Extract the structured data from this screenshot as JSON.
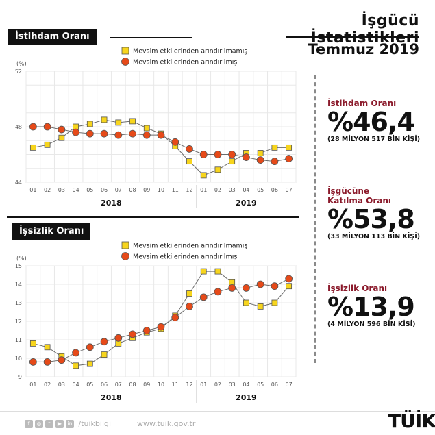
{
  "header": {
    "title": "İşgücü İstatistikleri",
    "period": "Temmuz 2019"
  },
  "sections": {
    "employment_tag": "İstihdam Oranı",
    "unemployment_tag": "İşsizlik Oranı"
  },
  "stats": [
    {
      "label_lines": [
        "İstihdam Oranı"
      ],
      "value": "%46,4",
      "sub": "(28 MİLYON 517 BİN KİŞİ)"
    },
    {
      "label_lines": [
        "İşgücüne",
        "Katılma Oranı"
      ],
      "value": "%53,8",
      "sub": "(33 MİLYON 113 BİN KİŞİ)"
    },
    {
      "label_lines": [
        "İşsizlik Oranı"
      ],
      "value": "%13,9",
      "sub": "(4 MİLYON 596 BİN KİŞİ)"
    }
  ],
  "footer": {
    "handle": "/tuikbilgi",
    "site": "www.tuik.gov.tr",
    "logo": "TÜİK"
  },
  "colors": {
    "raw": "#f7d51d",
    "adjusted": "#e64a19",
    "accent": "#8b1a2b"
  },
  "chart_data": [
    {
      "type": "line",
      "ylabel": "(%)",
      "ylim": [
        44,
        52
      ],
      "yticks": [
        44,
        48,
        52
      ],
      "categories": [
        "01",
        "02",
        "03",
        "04",
        "05",
        "06",
        "07",
        "08",
        "09",
        "10",
        "11",
        "12",
        "01",
        "02",
        "03",
        "04",
        "05",
        "06",
        "07"
      ],
      "year_labels": [
        "2018",
        "2019"
      ],
      "grid": true,
      "legend_position": "top",
      "series": [
        {
          "name": "Mevsim etkilerinden arındırılmamış",
          "marker": "square",
          "color": "#f7d51d",
          "values": [
            46.5,
            46.7,
            47.2,
            48.0,
            48.2,
            48.5,
            48.3,
            48.4,
            47.9,
            47.5,
            46.6,
            45.5,
            44.5,
            44.9,
            45.5,
            46.1,
            46.1,
            46.5,
            46.5
          ]
        },
        {
          "name": "Mevsim etkilerinden arındırılmış",
          "marker": "circle",
          "color": "#e64a19",
          "values": [
            48.0,
            48.0,
            47.8,
            47.6,
            47.5,
            47.5,
            47.4,
            47.5,
            47.4,
            47.4,
            46.9,
            46.4,
            46.0,
            46.0,
            46.0,
            45.8,
            45.6,
            45.5,
            45.7
          ]
        }
      ]
    },
    {
      "type": "line",
      "ylabel": "(%)",
      "ylim": [
        9,
        15
      ],
      "yticks": [
        9,
        10,
        11,
        12,
        13,
        14,
        15
      ],
      "categories": [
        "01",
        "02",
        "03",
        "04",
        "05",
        "06",
        "07",
        "08",
        "09",
        "10",
        "11",
        "12",
        "01",
        "02",
        "03",
        "04",
        "05",
        "06",
        "07"
      ],
      "year_labels": [
        "2018",
        "2019"
      ],
      "grid": true,
      "legend_position": "top",
      "series": [
        {
          "name": "Mevsim etkilerinden arındırılmamış",
          "marker": "square",
          "color": "#f7d51d",
          "values": [
            10.8,
            10.6,
            10.1,
            9.6,
            9.7,
            10.2,
            10.8,
            11.1,
            11.4,
            11.6,
            12.3,
            13.5,
            14.7,
            14.7,
            14.1,
            13.0,
            12.8,
            13.0,
            13.9
          ]
        },
        {
          "name": "Mevsim etkilerinden arındırılmış",
          "marker": "circle",
          "color": "#e64a19",
          "values": [
            9.8,
            9.8,
            9.9,
            10.3,
            10.6,
            10.9,
            11.1,
            11.3,
            11.5,
            11.7,
            12.2,
            12.8,
            13.3,
            13.6,
            13.8,
            13.8,
            14.0,
            13.9,
            14.3
          ]
        }
      ]
    }
  ]
}
